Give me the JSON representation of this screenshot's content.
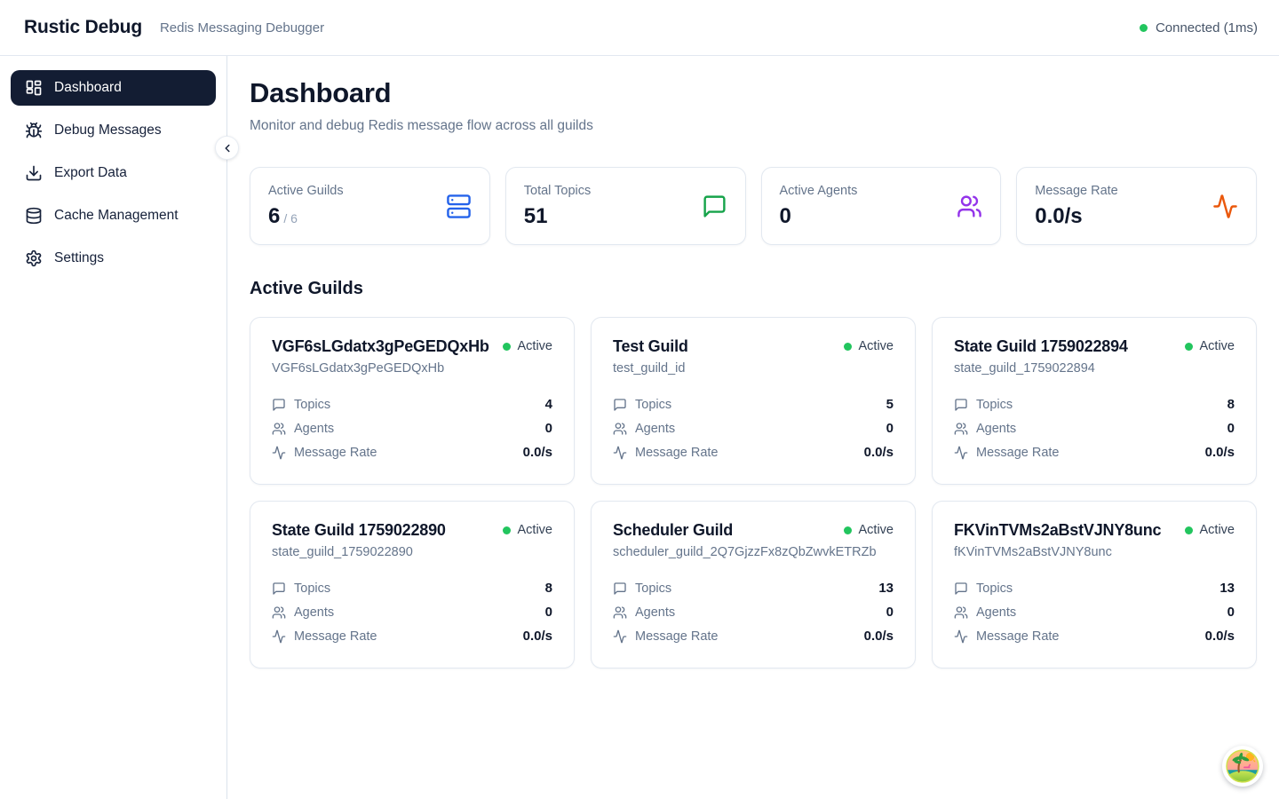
{
  "header": {
    "app_name": "Rustic Debug",
    "app_subtitle": "Redis Messaging Debugger",
    "connection_status": "Connected (1ms)"
  },
  "sidebar": {
    "items": [
      {
        "label": "Dashboard",
        "icon": "layout-dashboard",
        "active": true
      },
      {
        "label": "Debug Messages",
        "icon": "bug",
        "active": false
      },
      {
        "label": "Export Data",
        "icon": "download",
        "active": false
      },
      {
        "label": "Cache Management",
        "icon": "database",
        "active": false
      },
      {
        "label": "Settings",
        "icon": "gear",
        "active": false
      }
    ]
  },
  "main": {
    "title": "Dashboard",
    "subtitle": "Monitor and debug Redis message flow across all guilds",
    "stats": [
      {
        "label": "Active Guilds",
        "value": "6",
        "suffix": "/ 6",
        "icon": "server",
        "color": "#2563eb"
      },
      {
        "label": "Total Topics",
        "value": "51",
        "suffix": "",
        "icon": "message-square",
        "color": "#16a34a"
      },
      {
        "label": "Active Agents",
        "value": "0",
        "suffix": "",
        "icon": "users",
        "color": "#9333ea"
      },
      {
        "label": "Message Rate",
        "value": "0.0/s",
        "suffix": "",
        "icon": "activity",
        "color": "#ea580c"
      }
    ],
    "guilds_section_title": "Active Guilds",
    "row_labels": {
      "topics": "Topics",
      "agents": "Agents",
      "message_rate": "Message Rate"
    },
    "guilds": [
      {
        "name": "VGF6sLGdatx3gPeGEDQxHb",
        "id": "VGF6sLGdatx3gPeGEDQxHb",
        "status": "Active",
        "topics": "4",
        "agents": "0",
        "message_rate": "0.0/s"
      },
      {
        "name": "Test Guild",
        "id": "test_guild_id",
        "status": "Active",
        "topics": "5",
        "agents": "0",
        "message_rate": "0.0/s"
      },
      {
        "name": "State Guild 1759022894",
        "id": "state_guild_1759022894",
        "status": "Active",
        "topics": "8",
        "agents": "0",
        "message_rate": "0.0/s"
      },
      {
        "name": "State Guild 1759022890",
        "id": "state_guild_1759022890",
        "status": "Active",
        "topics": "8",
        "agents": "0",
        "message_rate": "0.0/s"
      },
      {
        "name": "Scheduler Guild",
        "id": "scheduler_guild_2Q7GjzzFx8zQbZwvkETRZb",
        "status": "Active",
        "topics": "13",
        "agents": "0",
        "message_rate": "0.0/s"
      },
      {
        "name": "FKVinTVMs2aBstVJNY8unc",
        "id": "fKVinTVMs2aBstVJNY8unc",
        "status": "Active",
        "topics": "13",
        "agents": "0",
        "message_rate": "0.0/s"
      }
    ]
  },
  "colors": {
    "accent_dark": "#131d33",
    "status_green": "#22c55e",
    "stat_blue": "#2563eb",
    "stat_green": "#16a34a",
    "stat_purple": "#9333ea",
    "stat_orange": "#ea580c",
    "border": "#e2e8f0",
    "text_muted": "#64748b"
  }
}
